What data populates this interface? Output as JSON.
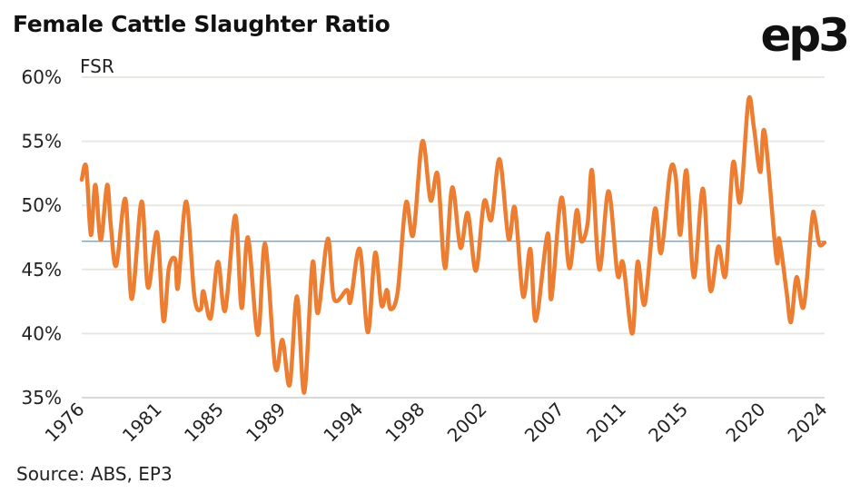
{
  "title": "Female Cattle Slaughter Ratio",
  "logo_text": "ep3",
  "source": "Source: ABS, EP3",
  "colors": {
    "series": "#ED7D31",
    "average_line": "#5B9BD5",
    "grid": "#E8E8E0"
  },
  "chart_data": {
    "type": "line",
    "title": "Female Cattle Slaughter Ratio",
    "ylabel": "FSR",
    "xlabel": "",
    "ylim": [
      35,
      60
    ],
    "xlim": [
      1976,
      2024
    ],
    "yticks": [
      "35%",
      "40%",
      "45%",
      "50%",
      "55%",
      "60%"
    ],
    "ytick_values": [
      35,
      40,
      45,
      50,
      55,
      60
    ],
    "xticks": [
      "1976",
      "1981",
      "1985",
      "1989",
      "1994",
      "1998",
      "2002",
      "2007",
      "2011",
      "2015",
      "2020",
      "2024"
    ],
    "grid": "horizontal",
    "average": 47.2,
    "x": [
      1976.0,
      1976.29,
      1976.59,
      1976.88,
      1977.23,
      1977.64,
      1977.88,
      1978.23,
      1978.82,
      1979.23,
      1979.87,
      1980.28,
      1980.87,
      1981.28,
      1981.63,
      1982.04,
      1982.22,
      1982.75,
      1983.28,
      1983.69,
      1983.86,
      1984.33,
      1984.8,
      1985.27,
      1985.92,
      1986.33,
      1986.74,
      1987.38,
      1987.85,
      1988.5,
      1988.97,
      1989.44,
      1989.91,
      1990.38,
      1990.91,
      1991.26,
      1991.9,
      1992.31,
      1993.14,
      1993.37,
      1993.96,
      1994.49,
      1994.96,
      1995.37,
      1995.72,
      1995.95,
      1996.42,
      1996.95,
      1997.42,
      1998.01,
      1998.54,
      1999.0,
      1999.47,
      1999.94,
      2000.47,
      2000.94,
      2001.47,
      2002.0,
      2002.47,
      2003.0,
      2003.58,
      2003.99,
      2004.52,
      2004.99,
      2005.34,
      2006.11,
      2006.34,
      2006.99,
      2007.51,
      2007.98,
      2008.28,
      2008.69,
      2008.98,
      2009.45,
      2010.04,
      2010.62,
      2010.98,
      2011.57,
      2011.92,
      2012.38,
      2013.03,
      2013.44,
      2014.03,
      2014.38,
      2014.67,
      2015.08,
      2015.55,
      2016.14,
      2016.61,
      2017.14,
      2017.61,
      2018.08,
      2018.55,
      2019.08,
      2019.43,
      2019.84,
      2020.13,
      2020.89,
      2021.07,
      2021.54,
      2021.83,
      2022.19,
      2022.65,
      2023.18,
      2023.36,
      2023.65,
      2024.0
    ],
    "y": [
      52.0,
      53.0,
      47.7,
      51.6,
      47.3,
      51.6,
      48.4,
      45.3,
      50.5,
      42.7,
      50.3,
      43.6,
      47.9,
      41.0,
      45.1,
      45.8,
      43.6,
      50.3,
      42.9,
      41.9,
      43.3,
      41.2,
      45.6,
      41.8,
      49.2,
      42.0,
      47.5,
      39.9,
      47.0,
      37.4,
      39.5,
      36.0,
      42.9,
      35.4,
      45.5,
      41.6,
      47.4,
      42.7,
      43.4,
      42.5,
      46.6,
      40.1,
      46.3,
      42.2,
      43.4,
      41.9,
      43.3,
      50.2,
      47.7,
      55.0,
      50.4,
      52.4,
      45.1,
      51.4,
      46.7,
      49.4,
      44.9,
      50.3,
      48.9,
      53.6,
      47.4,
      49.8,
      42.9,
      46.6,
      41.0,
      47.8,
      42.7,
      50.6,
      45.1,
      49.6,
      47.2,
      48.6,
      52.7,
      45.0,
      51.1,
      44.6,
      45.5,
      40.0,
      45.6,
      42.3,
      49.7,
      46.3,
      52.7,
      52.2,
      47.7,
      52.7,
      44.4,
      51.3,
      43.4,
      46.8,
      44.6,
      53.3,
      50.3,
      58.2,
      56.1,
      52.6,
      55.7,
      45.8,
      47.4,
      43.3,
      40.9,
      44.4,
      42.1,
      48.8,
      49.1,
      47.0,
      47.1
    ]
  }
}
